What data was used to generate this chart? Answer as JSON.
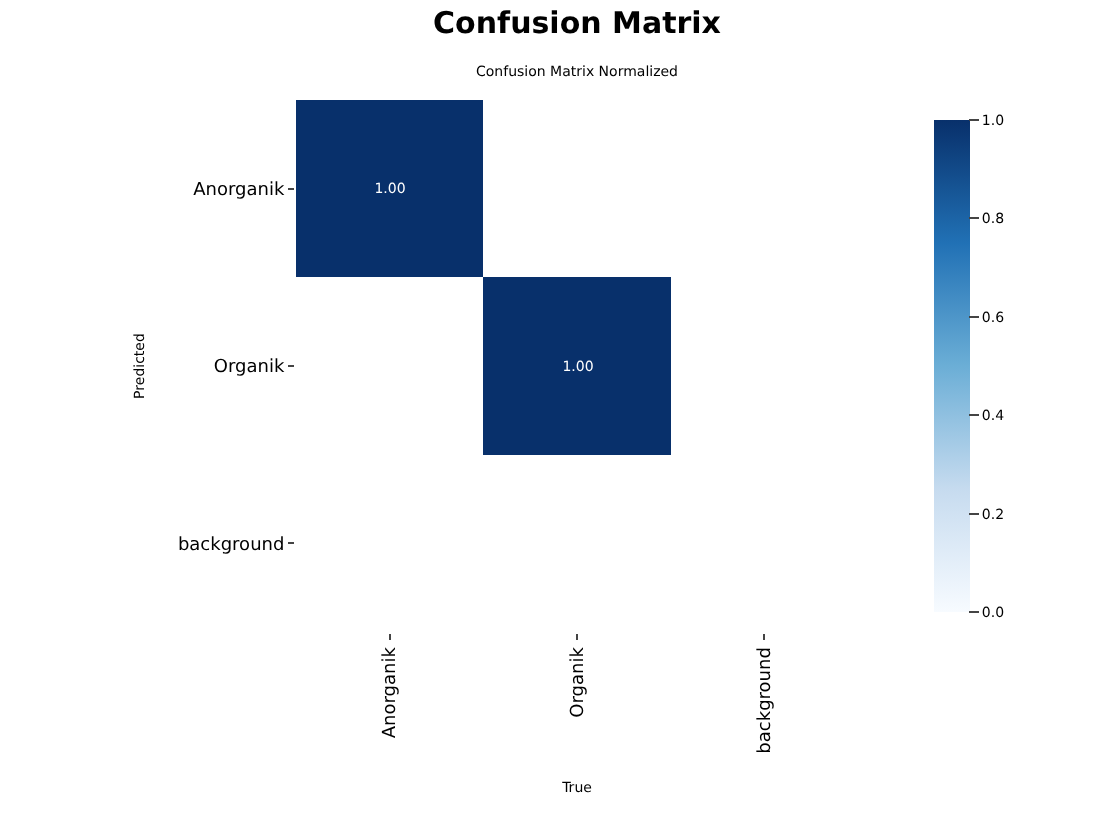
{
  "chart_data": {
    "type": "heatmap",
    "title": "Confusion Matrix",
    "subtitle": "Confusion Matrix Normalized",
    "xlabel": "True",
    "ylabel": "Predicted",
    "categories": [
      "Anorganik",
      "Organik",
      "background"
    ],
    "y_categories": [
      "Anorganik",
      "Organik",
      "background"
    ],
    "cells": [
      [
        1.0,
        null,
        null
      ],
      [
        null,
        1.0,
        null
      ],
      [
        null,
        null,
        null
      ]
    ],
    "cell_labels": [
      [
        "1.00",
        null,
        null
      ],
      [
        null,
        "1.00",
        null
      ],
      [
        null,
        null,
        null
      ]
    ],
    "clim": [
      0,
      1
    ],
    "cticks": [
      {
        "value": 0,
        "label": "0.0"
      },
      {
        "value": 0.2,
        "label": "0.2"
      },
      {
        "value": 0.4,
        "label": "0.4"
      },
      {
        "value": 0.6,
        "label": "0.6"
      },
      {
        "value": 0.8,
        "label": "0.8"
      },
      {
        "value": 1,
        "label": "1.0"
      }
    ]
  }
}
